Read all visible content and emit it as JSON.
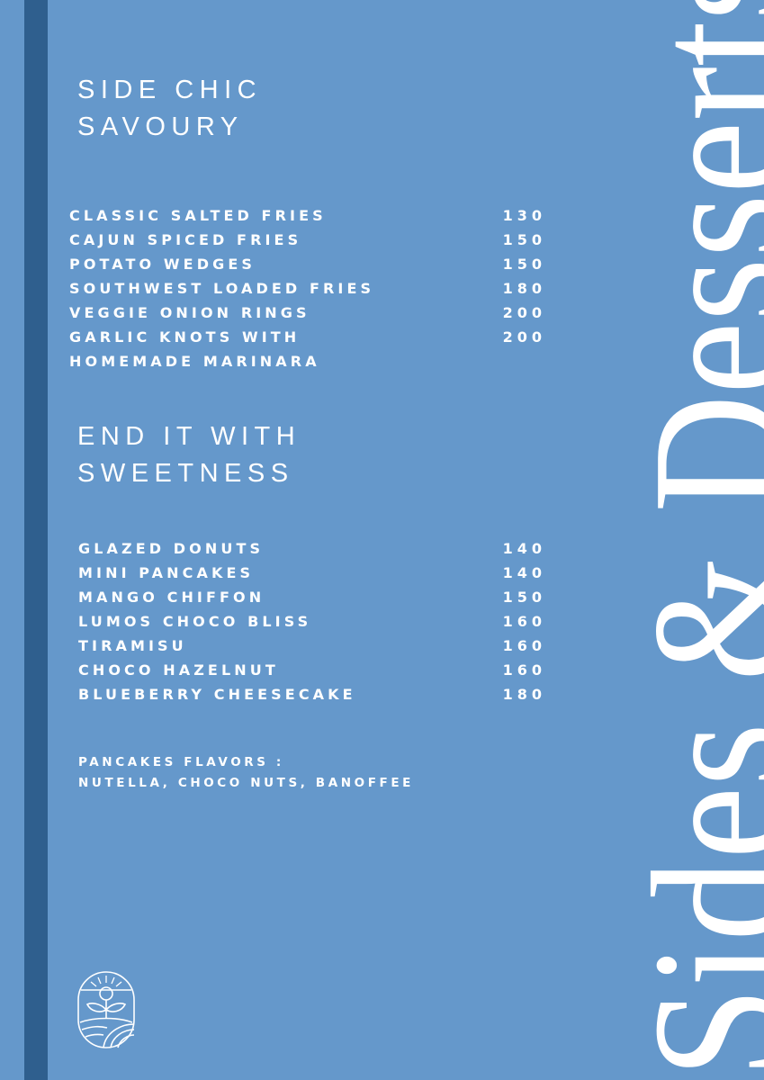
{
  "vertical_title": "Sides & Desserts",
  "savoury": {
    "heading_line1": "SIDE CHIC",
    "heading_line2": "SAVOURY",
    "items": [
      {
        "name": "CLASSIC SALTED FRIES",
        "price": "130"
      },
      {
        "name": "CAJUN SPICED FRIES",
        "price": "150"
      },
      {
        "name": "POTATO WEDGES",
        "price": "150"
      },
      {
        "name": "SOUTHWEST LOADED FRIES",
        "price": "180"
      },
      {
        "name": "VEGGIE ONION RINGS",
        "price": "200"
      },
      {
        "name": "GARLIC KNOTS WITH",
        "price": "200"
      },
      {
        "name": "HOMEMADE MARINARA",
        "price": ""
      }
    ]
  },
  "desserts": {
    "heading_line1": "END IT WITH",
    "heading_line2": "SWEETNESS",
    "items": [
      {
        "name": "GLAZED DONUTS",
        "price": "140"
      },
      {
        "name": "MINI PANCAKES",
        "price": "140"
      },
      {
        "name": "MANGO CHIFFON",
        "price": "150"
      },
      {
        "name": "LUMOS CHOCO BLISS",
        "price": "160"
      },
      {
        "name": "TIRAMISU",
        "price": "160"
      },
      {
        "name": "CHOCO HAZELNUT",
        "price": "160"
      },
      {
        "name": "BLUEBERRY CHEESECAKE",
        "price": "180"
      }
    ]
  },
  "note": {
    "line1": "PANCAKES FLAVORS :",
    "line2": "NUTELLA, CHOCO NUTS, BANOFFEE"
  },
  "colors": {
    "background": "#6598cb",
    "stripe": "#2f5f8e",
    "text": "#ffffff"
  },
  "logo_icon": "sun-leaf-field-emblem"
}
